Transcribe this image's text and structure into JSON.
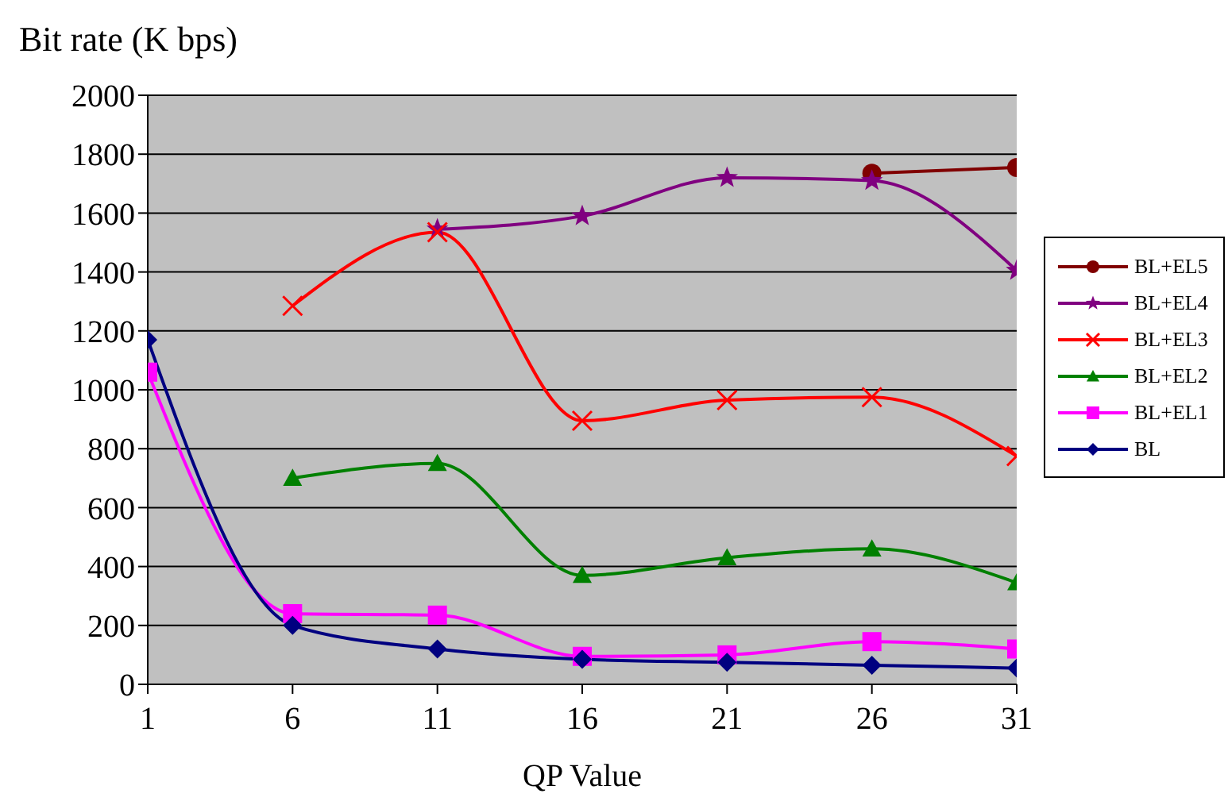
{
  "chart_data": {
    "type": "line",
    "ylabel": "Bit rate (K bps)",
    "xlabel": "QP Value",
    "x": [
      1,
      6,
      11,
      16,
      21,
      26,
      31
    ],
    "xlim": [
      1,
      31
    ],
    "xticks": [
      1,
      6,
      11,
      16,
      21,
      26,
      31
    ],
    "ylim": [
      0,
      2000
    ],
    "yticks": [
      0,
      200,
      400,
      600,
      800,
      1000,
      1200,
      1400,
      1600,
      1800,
      2000
    ],
    "grid": "y",
    "legend": "right",
    "line_style": "solid",
    "series": [
      {
        "name": "BL+EL5",
        "color": "#800000",
        "marker": "circle",
        "values": [
          null,
          null,
          null,
          null,
          null,
          1735,
          1755
        ]
      },
      {
        "name": "BL+EL4",
        "color": "#800080",
        "marker": "star",
        "values": [
          null,
          null,
          1545,
          1590,
          1720,
          1710,
          1405
        ]
      },
      {
        "name": "BL+EL3",
        "color": "#ff0000",
        "marker": "cross",
        "values": [
          null,
          1285,
          1535,
          895,
          965,
          975,
          775
        ]
      },
      {
        "name": "BL+EL2",
        "color": "#008000",
        "marker": "triangle",
        "values": [
          null,
          700,
          750,
          370,
          430,
          460,
          345
        ]
      },
      {
        "name": "BL+EL1",
        "color": "#ff00ff",
        "marker": "square",
        "values": [
          1060,
          240,
          235,
          95,
          100,
          145,
          120
        ]
      },
      {
        "name": "BL",
        "color": "#000080",
        "marker": "diamond",
        "values": [
          1170,
          200,
          120,
          85,
          75,
          65,
          55
        ]
      }
    ]
  }
}
